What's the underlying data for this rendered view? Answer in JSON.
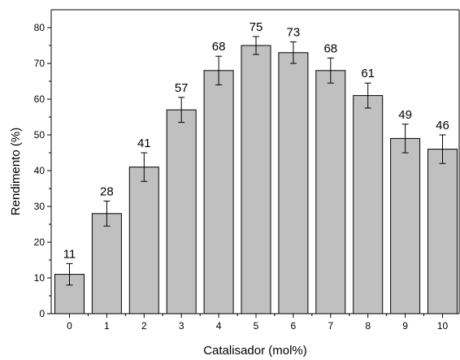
{
  "chart_data": {
    "type": "bar",
    "categories": [
      "0",
      "1",
      "2",
      "3",
      "4",
      "5",
      "6",
      "7",
      "8",
      "9",
      "10"
    ],
    "values": [
      11,
      28,
      41,
      57,
      68,
      75,
      73,
      68,
      61,
      49,
      46
    ],
    "error": [
      3,
      3.5,
      4,
      3.5,
      4,
      2.5,
      3,
      3.5,
      3.5,
      4,
      4
    ],
    "data_labels": [
      "11",
      "28",
      "41",
      "57",
      "68",
      "75",
      "73",
      "68",
      "61",
      "49",
      "46"
    ],
    "xlabel": "Catalisador (mol%)",
    "ylabel": "Rendimento (%)",
    "ylim": [
      0,
      85
    ],
    "yticks": [
      0,
      10,
      20,
      30,
      40,
      50,
      60,
      70,
      80
    ],
    "ytick_labels": [
      "0",
      "10",
      "20",
      "30",
      "40",
      "50",
      "60",
      "70",
      "80"
    ],
    "bar_color": "#c0c0c0",
    "edge_color": "#000000",
    "grid": false,
    "legend": "none"
  }
}
